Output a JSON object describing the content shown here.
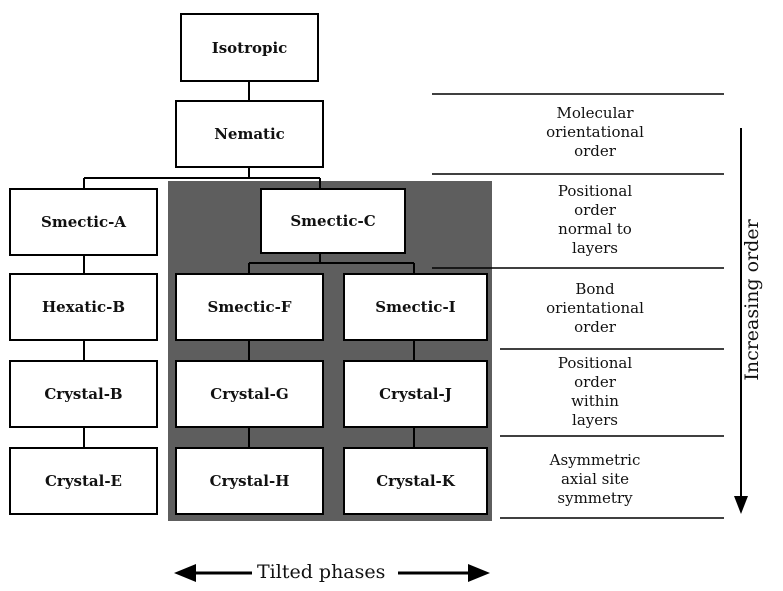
{
  "phases": {
    "isotropic": "Isotropic",
    "nematic": "Nematic",
    "smectic_a": "Smectic-A",
    "smectic_c": "Smectic-C",
    "hexatic_b": "Hexatic-B",
    "smectic_f": "Smectic-F",
    "smectic_i": "Smectic-I",
    "crystal_b": "Crystal-B",
    "crystal_g": "Crystal-G",
    "crystal_j": "Crystal-J",
    "crystal_e": "Crystal-E",
    "crystal_h": "Crystal-H",
    "crystal_k": "Crystal-K"
  },
  "order_levels": [
    "Molecular\norientational\norder",
    "Positional\norder\nnormal to\nlayers",
    "Bond\norientational\norder",
    "Positional\norder\nwithin\nlayers",
    "Asymmetric\naxial site\nsymmetry"
  ],
  "axis_label": "Increasing order",
  "tilted_label": "Tilted phases",
  "colors": {
    "tilted_region": "#5e5e5e",
    "box_border": "#000000",
    "line": "#000000"
  }
}
